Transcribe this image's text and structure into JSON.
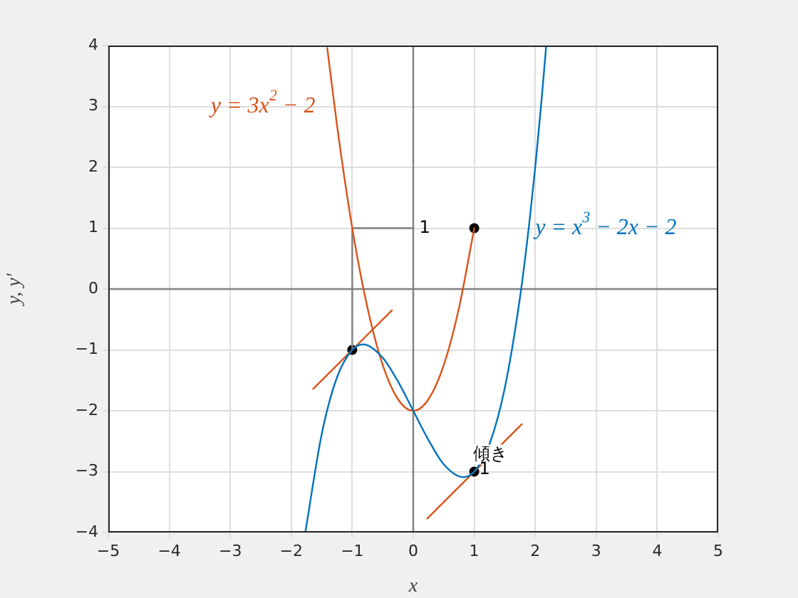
{
  "chart_data": {
    "type": "line",
    "xlabel": "x",
    "ylabel": "y, y'",
    "xlim": [
      -5,
      5
    ],
    "ylim": [
      -4,
      4
    ],
    "xticks": [
      -5,
      -4,
      -3,
      -2,
      -1,
      0,
      1,
      2,
      3,
      4,
      5
    ],
    "yticks": [
      -4,
      -3,
      -2,
      -1,
      0,
      1,
      2,
      3,
      4
    ],
    "grid": true,
    "legend": false,
    "series": [
      {
        "color": "#0072bd",
        "x": [
          -1.77,
          -1.5,
          -1.25,
          -1,
          -0.82,
          -0.5,
          -0.25,
          0,
          0.25,
          0.5,
          0.82,
          1,
          1.25,
          1.5,
          1.75,
          1.9,
          2,
          2.1,
          2.18
        ],
        "values": [
          -4,
          -2.38,
          -1.45,
          -1,
          -0.91,
          -1.13,
          -1.52,
          -2,
          -2.48,
          -2.88,
          -3.09,
          -3,
          -2.55,
          -1.63,
          -0.14,
          1.06,
          2,
          3.06,
          4
        ]
      },
      {
        "color": "#d95319",
        "x": [
          -1.41,
          -1.25,
          -1,
          -0.75,
          -0.5,
          -0.25,
          0,
          0.25,
          0.5,
          0.75,
          1
        ],
        "values": [
          3.96,
          2.69,
          1,
          -0.31,
          -1.25,
          -1.81,
          -2,
          -1.81,
          -1.25,
          -0.31,
          1
        ]
      },
      {
        "color": "#d95319",
        "x": [
          -1.64,
          -0.35
        ],
        "values": [
          -1.64,
          -0.35
        ]
      },
      {
        "color": "#d95319",
        "x": [
          0.23,
          1.78
        ],
        "values": [
          -3.77,
          -2.22
        ]
      },
      {
        "color": "#808080",
        "x": [
          -1,
          -1,
          0
        ],
        "values": [
          -1,
          1,
          1
        ]
      },
      {
        "color": "#808080",
        "x": [
          0,
          0
        ],
        "values": [
          -4,
          4
        ]
      },
      {
        "color": "#808080",
        "x": [
          -5,
          5
        ],
        "values": [
          0,
          0
        ]
      },
      {
        "type": "scatter",
        "color": "#000000",
        "marker": "circle",
        "x": [
          -1,
          1,
          1
        ],
        "values": [
          -1,
          1,
          -3
        ]
      }
    ],
    "annotations": [
      "y = 3x$^{2}$ − 2",
      "y = x$^{3}$ − 2x − 2",
      {
        "text": "1",
        "x": 0.1,
        "y": 1
      },
      "傾き",
      {
        "text": "1",
        "x": 1.08,
        "y": -2.97
      }
    ]
  }
}
